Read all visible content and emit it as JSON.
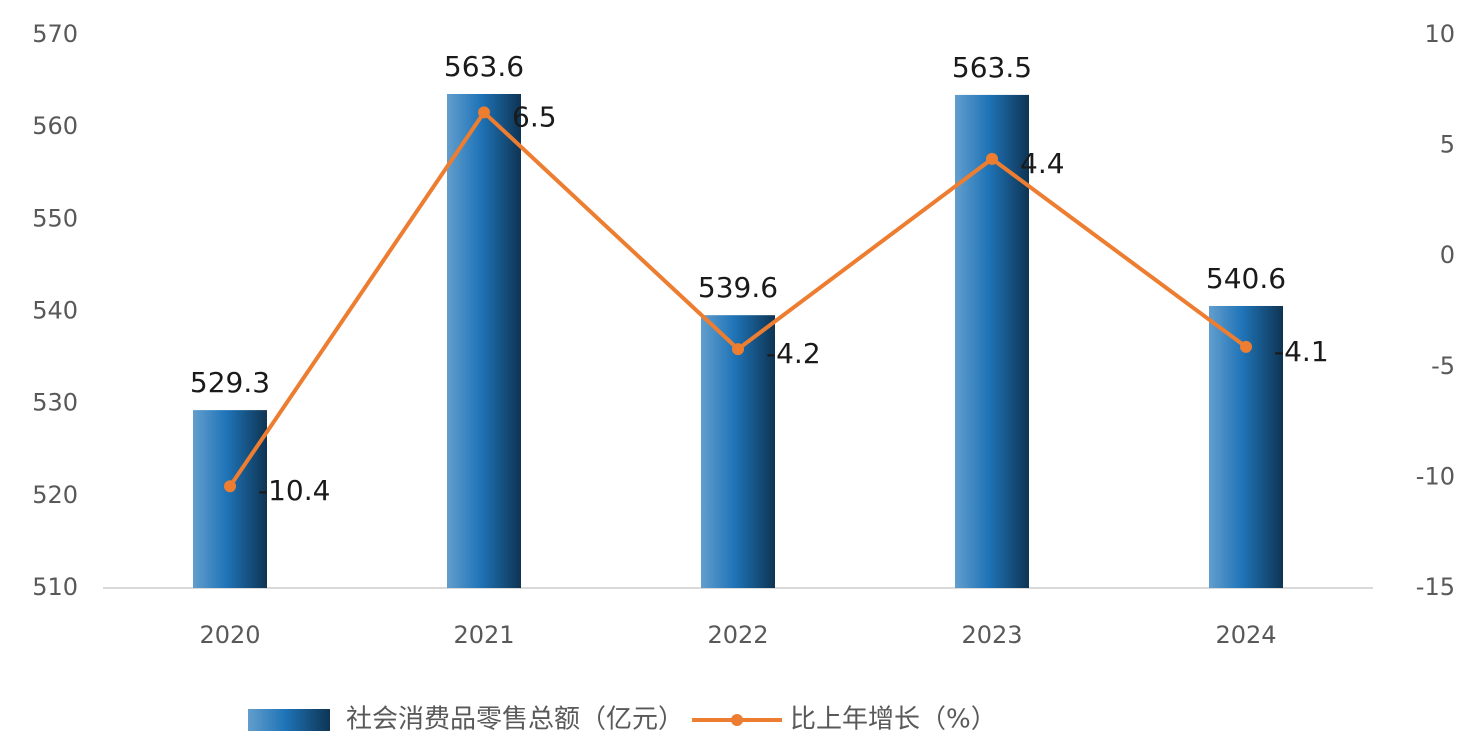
{
  "chart_data": {
    "type": "bar",
    "categories": [
      "2020",
      "2021",
      "2022",
      "2023",
      "2024"
    ],
    "series": [
      {
        "name": "社会消费品零售总额（亿元）",
        "type": "bar",
        "color": "#1f74b8",
        "values": [
          529.3,
          563.6,
          539.6,
          563.5,
          540.6
        ]
      },
      {
        "name": "比上年增长（%）",
        "type": "line",
        "axis": "y2",
        "color": "#ed7d31",
        "values": [
          -10.4,
          6.5,
          -4.2,
          4.4,
          -4.1
        ]
      }
    ],
    "ylim": [
      510,
      570
    ],
    "yticks": [
      510,
      520,
      530,
      540,
      550,
      560,
      570
    ],
    "y2lim": [
      -15,
      10
    ],
    "y2ticks": [
      -15,
      -10,
      -5,
      0,
      5,
      10
    ],
    "grid": false
  }
}
